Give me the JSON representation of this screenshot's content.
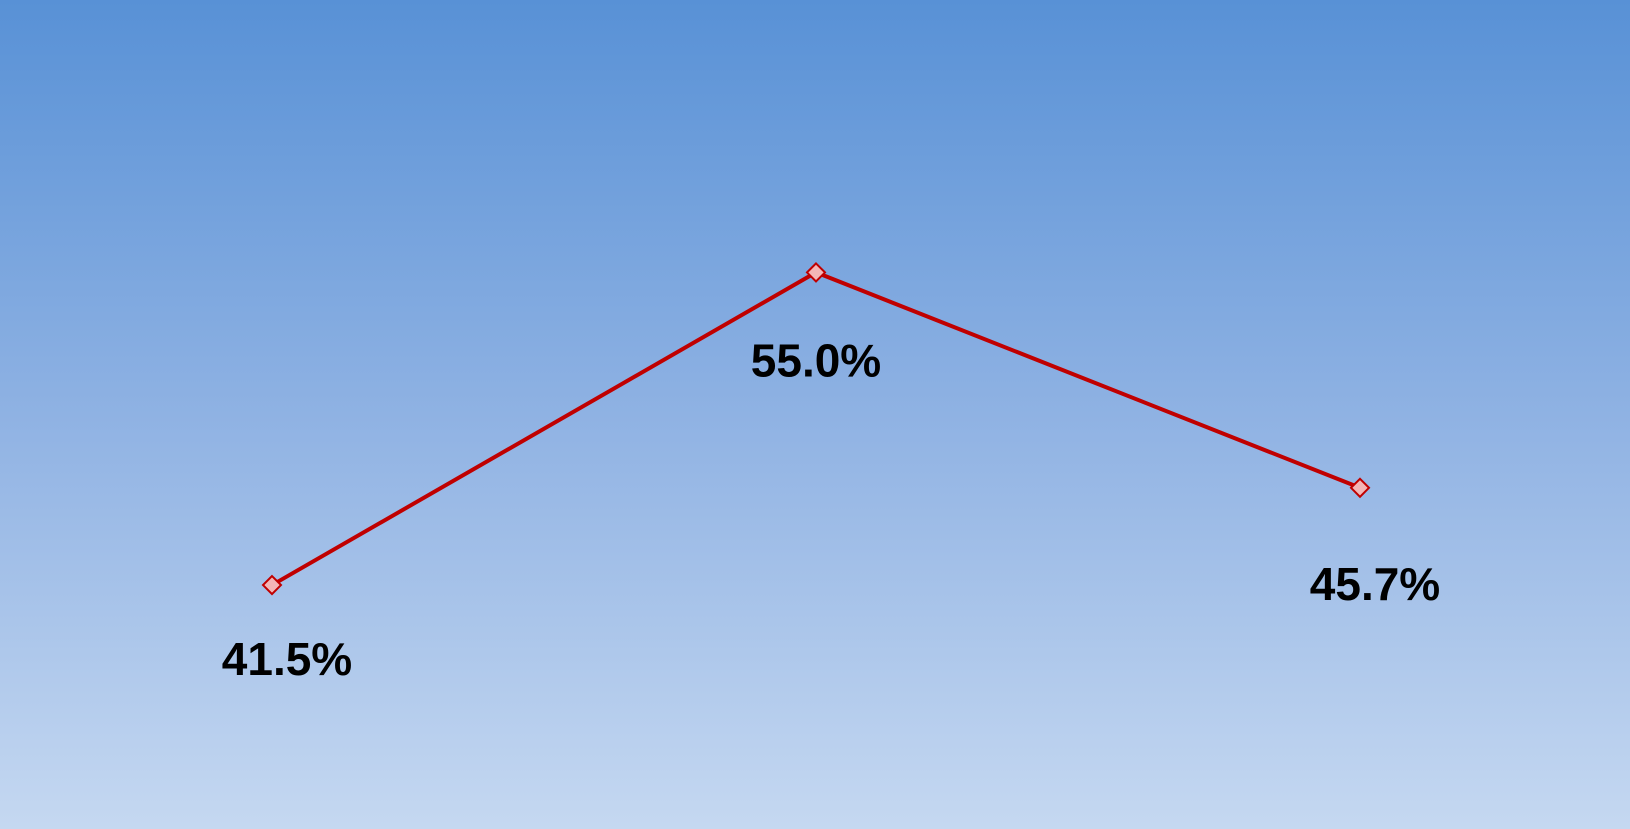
{
  "chart_data": {
    "type": "line",
    "categories": [
      "",
      "",
      ""
    ],
    "series": [
      {
        "values": [
          41.5,
          55.0,
          45.7
        ],
        "labels": [
          "41.5%",
          "55.0%",
          "45.7%"
        ],
        "color": "#c00000",
        "marker": "diamond",
        "marker_fill": "#f4b6b6"
      }
    ],
    "title": "",
    "xlabel": "",
    "ylabel": "",
    "ylim": [
      20,
      70
    ],
    "grid": false,
    "legend": "none",
    "background": {
      "gradient_top": "#5891d6",
      "gradient_bottom": "#c5d8f1"
    }
  }
}
